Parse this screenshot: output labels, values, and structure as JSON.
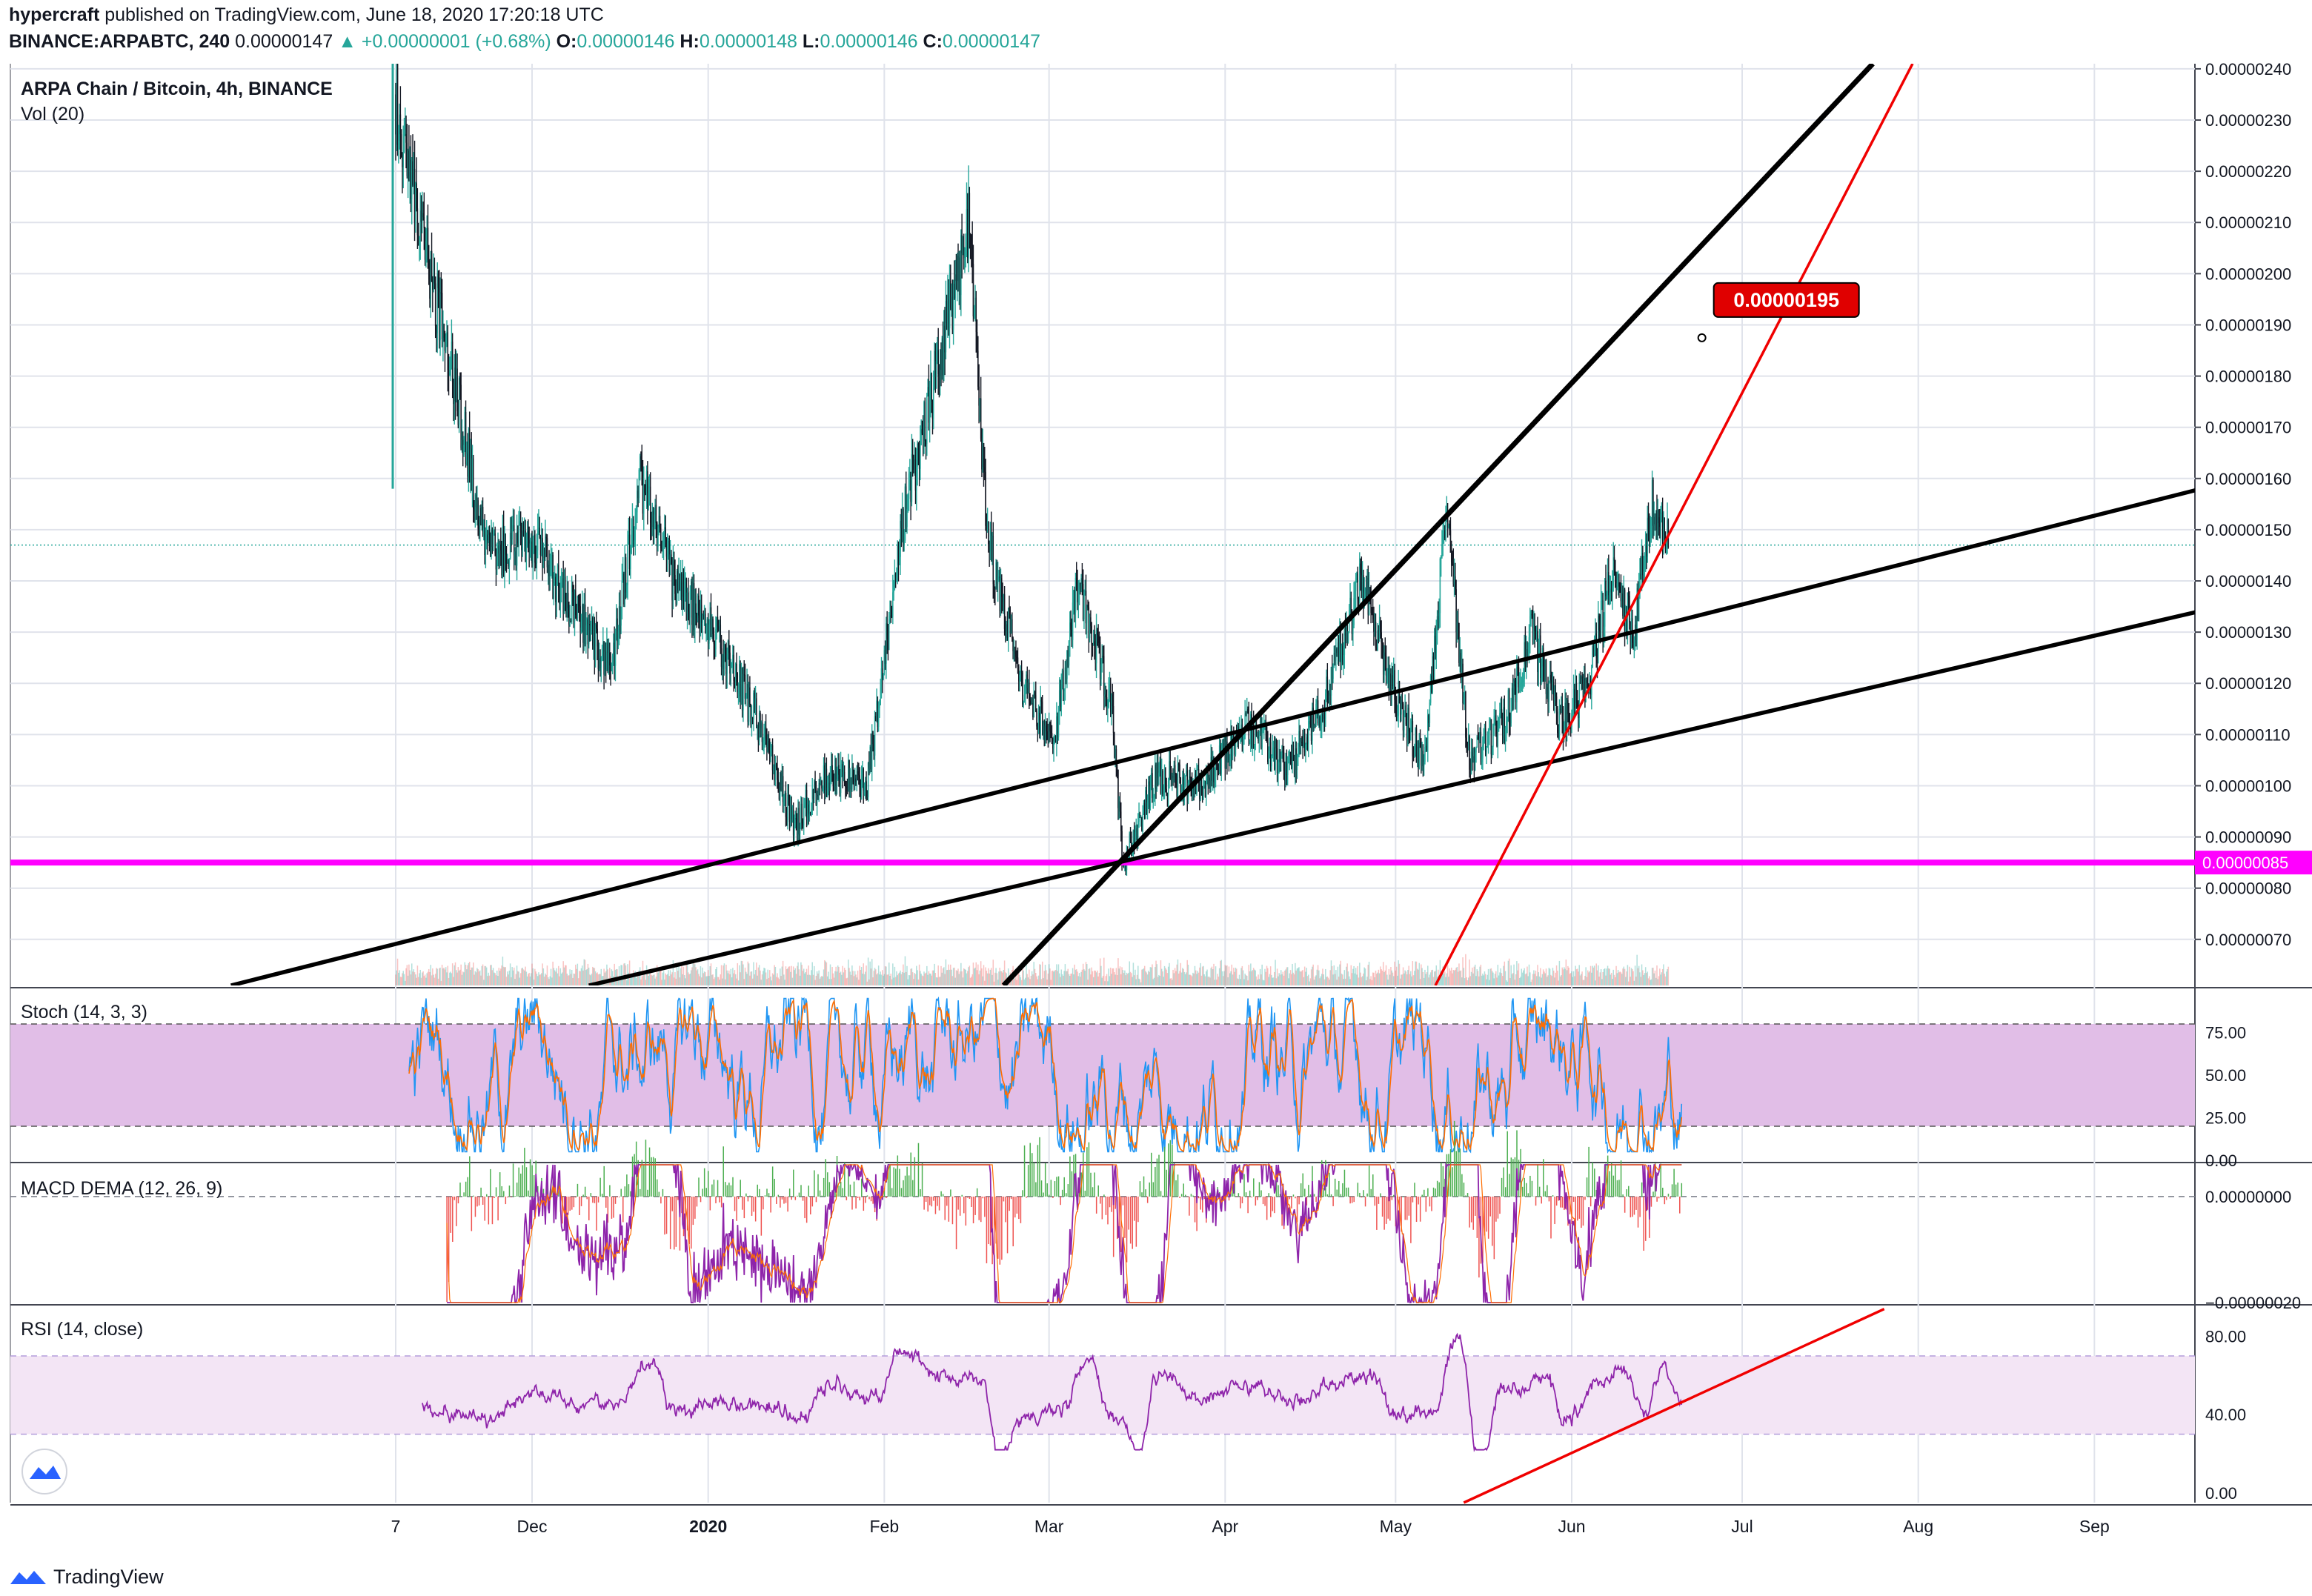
{
  "header": {
    "line1_author": "hypercraft",
    "line1_rest": "published on TradingView.com, June 18, 2020 17:20:18 UTC",
    "symbol": "BINANCE:ARPABTC, 240",
    "last": "0.00000147",
    "change": "▲ +0.00000001 (+0.68%)",
    "o_label": "O:",
    "o_value": "0.00000146",
    "h_label": "H:",
    "h_value": "0.00000148",
    "l_label": "L:",
    "l_value": "0.00000146",
    "c_label": "C:",
    "c_value": "0.00000147"
  },
  "legend": {
    "title": "ARPA Chain / Bitcoin, 4h, BINANCE",
    "volume": "Vol (20)",
    "stoch": "Stoch (14, 3, 3)",
    "macd": "MACD DEMA (12, 26, 9)",
    "rsi": "RSI (14, close)"
  },
  "footer": {
    "brand": "TradingView"
  },
  "colors": {
    "up": "#26a69a",
    "down": "#131722",
    "trendline": "#000000",
    "red_line": "#f00000",
    "support": "#ff00ff",
    "stoch_band": "#e1bee7",
    "rsi_band": "#f3e5f5",
    "rsi_line": "#8e24aa",
    "grid": "#e0e3eb",
    "price_badge": "#e00000"
  },
  "chart_data": [
    {
      "type": "candlestick",
      "name": "ARPA Chain / Bitcoin, 4h, BINANCE",
      "x_ticks": [
        "7",
        "Dec",
        "2020",
        "Feb",
        "Mar",
        "Apr",
        "May",
        "Jun",
        "Jul",
        "Aug",
        "Sep"
      ],
      "y_ticks": [
        "0.00000240",
        "0.00000230",
        "0.00000220",
        "0.00000210",
        "0.00000200",
        "0.00000190",
        "0.00000180",
        "0.00000170",
        "0.00000160",
        "0.00000150",
        "0.00000140",
        "0.00000130",
        "0.00000120",
        "0.00000110",
        "0.00000100",
        "0.00000090",
        "0.00000080",
        "0.00000070"
      ],
      "ylim": [
        6.1e-07,
        2.41e-06
      ],
      "last_price": 1.47e-06,
      "approx_daily_closes": [
        {
          "date": "2019-11-07",
          "close": 2.35e-06
        },
        {
          "date": "2019-11-12",
          "close": 2.05e-06
        },
        {
          "date": "2019-11-18",
          "close": 1.75e-06
        },
        {
          "date": "2019-11-23",
          "close": 1.45e-06
        },
        {
          "date": "2019-12-01",
          "close": 1.48e-06
        },
        {
          "date": "2019-12-08",
          "close": 1.35e-06
        },
        {
          "date": "2019-12-15",
          "close": 1.22e-06
        },
        {
          "date": "2019-12-20",
          "close": 1.6e-06
        },
        {
          "date": "2019-12-26",
          "close": 1.4e-06
        },
        {
          "date": "2020-01-02",
          "close": 1.3e-06
        },
        {
          "date": "2020-01-10",
          "close": 1.12e-06
        },
        {
          "date": "2020-01-16",
          "close": 9.2e-07
        },
        {
          "date": "2020-01-22",
          "close": 1.03e-06
        },
        {
          "date": "2020-01-29",
          "close": 1e-06
        },
        {
          "date": "2020-02-04",
          "close": 1.5e-06
        },
        {
          "date": "2020-02-10",
          "close": 1.8e-06
        },
        {
          "date": "2020-02-16",
          "close": 2.1e-06
        },
        {
          "date": "2020-02-19",
          "close": 1.5e-06
        },
        {
          "date": "2020-02-25",
          "close": 1.2e-06
        },
        {
          "date": "2020-03-02",
          "close": 1.08e-06
        },
        {
          "date": "2020-03-06",
          "close": 1.4e-06
        },
        {
          "date": "2020-03-12",
          "close": 1.15e-06
        },
        {
          "date": "2020-03-14",
          "close": 8.5e-07
        },
        {
          "date": "2020-03-20",
          "close": 1.02e-06
        },
        {
          "date": "2020-03-28",
          "close": 1e-06
        },
        {
          "date": "2020-04-05",
          "close": 1.12e-06
        },
        {
          "date": "2020-04-12",
          "close": 1.03e-06
        },
        {
          "date": "2020-04-18",
          "close": 1.15e-06
        },
        {
          "date": "2020-04-25",
          "close": 1.4e-06
        },
        {
          "date": "2020-05-01",
          "close": 1.18e-06
        },
        {
          "date": "2020-05-06",
          "close": 1.03e-06
        },
        {
          "date": "2020-05-10",
          "close": 1.55e-06
        },
        {
          "date": "2020-05-14",
          "close": 1.05e-06
        },
        {
          "date": "2020-05-20",
          "close": 1.12e-06
        },
        {
          "date": "2020-05-25",
          "close": 1.3e-06
        },
        {
          "date": "2020-05-30",
          "close": 1.12e-06
        },
        {
          "date": "2020-06-04",
          "close": 1.2e-06
        },
        {
          "date": "2020-06-08",
          "close": 1.42e-06
        },
        {
          "date": "2020-06-12",
          "close": 1.3e-06
        },
        {
          "date": "2020-06-15",
          "close": 1.55e-06
        },
        {
          "date": "2020-06-18",
          "close": 1.47e-06
        }
      ],
      "support_level": {
        "value": 8.5e-07,
        "label": "0.00000085"
      },
      "target_label": {
        "value": 1.95e-06,
        "label": "0.00000195"
      },
      "trendlines": [
        {
          "name": "rising-thick",
          "p1": {
            "date": "2020-02-22",
            "value": 6.1e-07
          },
          "p2": {
            "date": "2020-07-24",
            "value": 2.41e-06
          }
        },
        {
          "name": "upper-channel",
          "p1": {
            "date": "2019-10-09",
            "value": 6.1e-07
          },
          "p2": {
            "date": "2020-09-27",
            "value": 1.6e-06
          }
        },
        {
          "name": "lower-channel",
          "p1": {
            "date": "2019-12-11",
            "value": 6.1e-07
          },
          "p2": {
            "date": "2020-09-27",
            "value": 1.36e-06
          }
        },
        {
          "name": "red-steep",
          "p1": {
            "date": "2020-05-08",
            "value": 6.1e-07
          },
          "p2": {
            "date": "2020-07-31",
            "value": 2.41e-06
          }
        }
      ]
    },
    {
      "type": "bar",
      "name": "Vol (20)",
      "note": "volume bars overlay at bottom of price pane"
    },
    {
      "type": "line",
      "name": "Stoch (14, 3, 3)",
      "y_ticks": [
        "75.00",
        "50.00",
        "25.00",
        "0.00"
      ],
      "ylim": [
        0,
        100
      ],
      "bands": [
        20,
        80
      ]
    },
    {
      "type": "line",
      "name": "MACD DEMA (12, 26, 9)",
      "y_ticks": [
        "0.00000000",
        "−0.00000020"
      ],
      "ylim": [
        -2e-07,
        6e-08
      ]
    },
    {
      "type": "line",
      "name": "RSI (14, close)",
      "y_ticks": [
        "80.00",
        "40.00",
        "0.00"
      ],
      "ylim": [
        -5,
        95
      ],
      "bands": [
        30,
        70
      ],
      "trendline": {
        "p1": {
          "date": "2020-05-13",
          "value": -5
        },
        "p2": {
          "date": "2020-07-26",
          "value": 94
        }
      }
    }
  ]
}
